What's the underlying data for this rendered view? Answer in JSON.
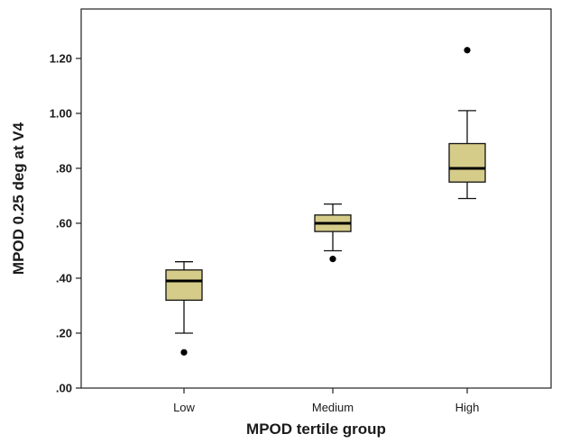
{
  "chart_data": {
    "type": "boxplot",
    "xlabel": "MPOD tertile group",
    "ylabel": "MPOD 0.25 deg at V4",
    "ylim": [
      0,
      1.38
    ],
    "yticks": [
      {
        "value": 0.0,
        "label": ".00"
      },
      {
        "value": 0.2,
        "label": ".20"
      },
      {
        "value": 0.4,
        "label": ".40"
      },
      {
        "value": 0.6,
        "label": ".60"
      },
      {
        "value": 0.8,
        "label": ".80"
      },
      {
        "value": 1.0,
        "label": "1.00"
      },
      {
        "value": 1.2,
        "label": "1.20"
      }
    ],
    "categories": [
      "Low",
      "Medium",
      "High"
    ],
    "boxes": [
      {
        "category": "Low",
        "whisker_low": 0.2,
        "q1": 0.32,
        "median": 0.39,
        "q3": 0.43,
        "whisker_high": 0.46,
        "outliers": [
          0.13
        ]
      },
      {
        "category": "Medium",
        "whisker_low": 0.5,
        "q1": 0.57,
        "median": 0.6,
        "q3": 0.63,
        "whisker_high": 0.67,
        "outliers": [
          0.47
        ]
      },
      {
        "category": "High",
        "whisker_low": 0.69,
        "q1": 0.75,
        "median": 0.8,
        "q3": 0.89,
        "whisker_high": 1.01,
        "outliers": [
          1.23
        ]
      }
    ],
    "box_fill": "#d6cc8a",
    "grid": false
  }
}
